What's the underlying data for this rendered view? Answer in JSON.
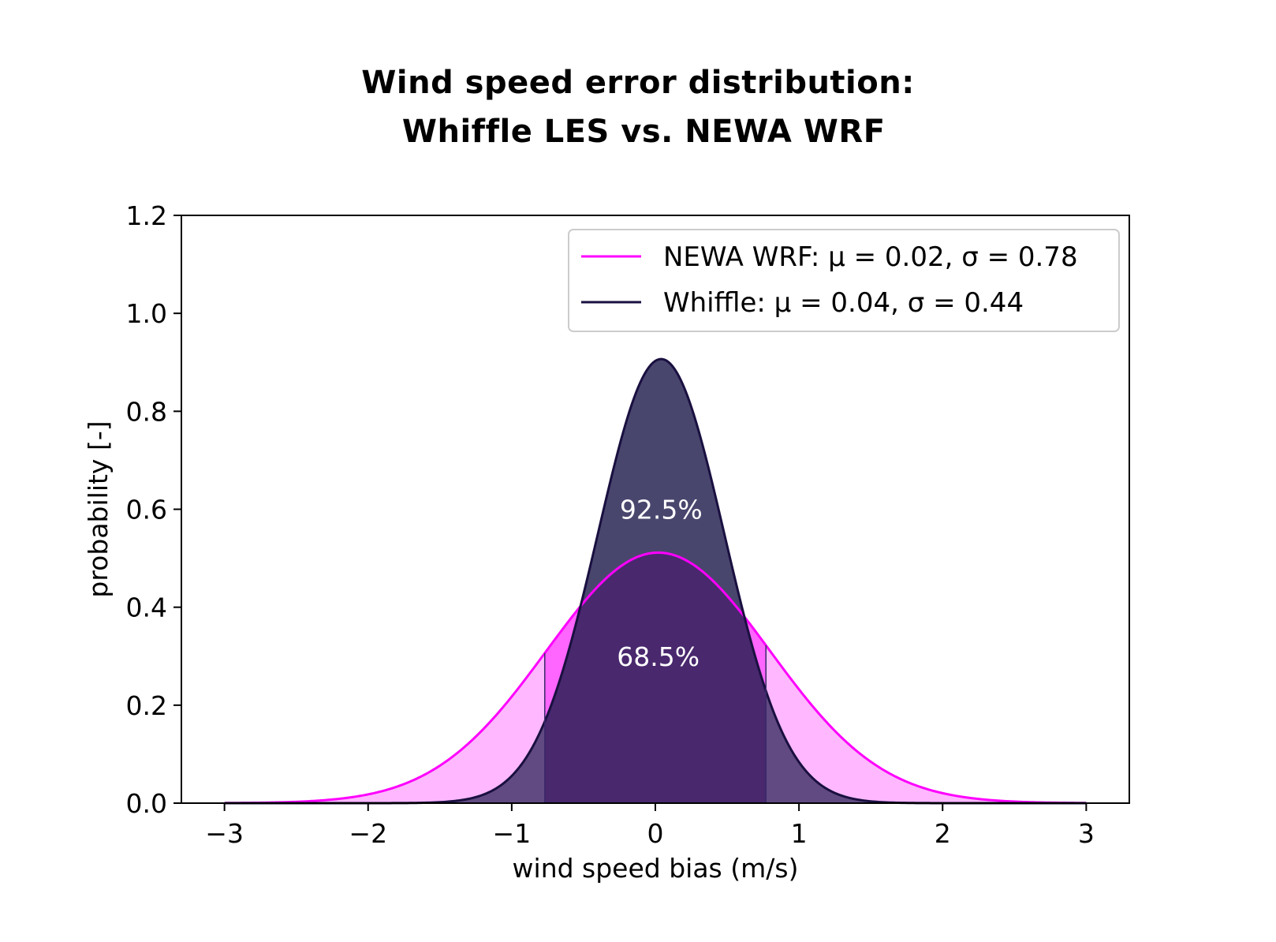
{
  "title_lines": [
    "Wind speed error distribution:",
    " Whiffle LES vs. NEWA WRF"
  ],
  "chart_data": {
    "type": "area",
    "xlabel": "wind speed bias (m/s)",
    "ylabel": "probability [-]",
    "xlim": [
      -3.3,
      3.3
    ],
    "ylim": [
      0.0,
      1.2
    ],
    "x_domain": [
      -3,
      3
    ],
    "xticks": [
      -3,
      -2,
      -1,
      0,
      1,
      2,
      3
    ],
    "xtick_labels": [
      "−3",
      "−2",
      "−1",
      "0",
      "1",
      "2",
      "3"
    ],
    "yticks": [
      0.0,
      0.2,
      0.4,
      0.6,
      0.8,
      1.0,
      1.2
    ],
    "ytick_labels": [
      "0.0",
      "0.2",
      "0.4",
      "0.6",
      "0.8",
      "1.0",
      "1.2"
    ],
    "grid": false,
    "legend_position": "top-right",
    "series": [
      {
        "name": "NEWA WRF: μ = 0.02, σ = 0.78",
        "mu": 0.02,
        "sigma": 0.78,
        "color": "#ff00ff",
        "fill": "#ff00ff",
        "fill_opacity": 0.28
      },
      {
        "name": "Whiffle: μ = 0.04, σ = 0.44",
        "mu": 0.04,
        "sigma": 0.44,
        "color": "#1a1040",
        "fill": "#1e1b4b",
        "fill_opacity": 0.7
      }
    ],
    "shaded_interval": [
      -0.77,
      0.77
    ],
    "annotations": [
      {
        "text": "92.5%",
        "x": 0.04,
        "y": 0.6
      },
      {
        "text": "68.5%",
        "x": 0.02,
        "y": 0.3
      }
    ]
  }
}
